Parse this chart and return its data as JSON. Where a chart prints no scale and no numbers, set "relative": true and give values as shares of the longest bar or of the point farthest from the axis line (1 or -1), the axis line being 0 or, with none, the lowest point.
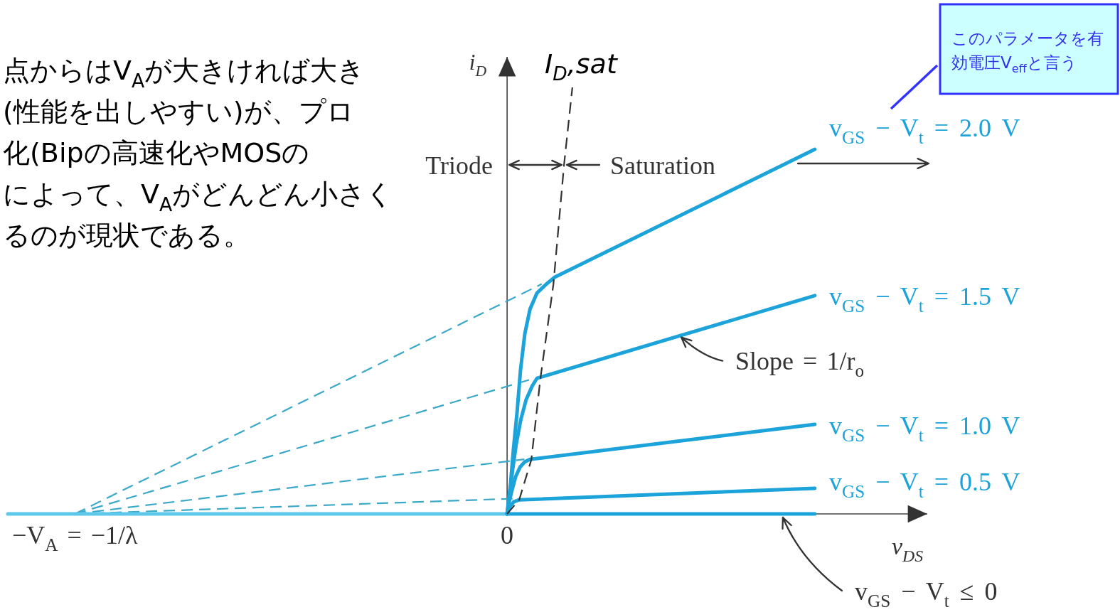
{
  "chart_data": {
    "type": "line",
    "relative": true,
    "tick_labels": "x",
    "xlabel": "v$_{DS}$",
    "ylabel": "i$_{D}$",
    "xlim": [
      -1.155,
      0.972
    ],
    "xticks": [
      {
        "value": -1,
        "label": "−V$_{A}$ = −1/λ"
      },
      {
        "value": 0,
        "label": "0"
      }
    ],
    "series": [
      {
        "color": "#3aa9c9",
        "line_style": "dashed",
        "x": [
          -1,
          0.08
        ],
        "values": [
          0,
          0.539
        ]
      },
      {
        "color": "#3aa9c9",
        "line_style": "dashed",
        "x": [
          -1,
          0.06
        ],
        "values": [
          0,
          0.317
        ]
      },
      {
        "color": "#3aa9c9",
        "line_style": "dashed",
        "x": [
          -1,
          0.04
        ],
        "values": [
          0,
          0.128
        ]
      },
      {
        "color": "#3aa9c9",
        "line_style": "dashed",
        "x": [
          -1,
          0.02
        ],
        "values": [
          0,
          0.036
        ]
      },
      {
        "color": "#5ec8ea",
        "x": [
          -1.155,
          0
        ],
        "values": [
          0,
          0
        ]
      },
      {
        "name": "v$_{GS}$ − V$_{t}$ = 2.0 V",
        "color": "#1ba3da",
        "x": [
          0,
          0.008,
          0.015,
          0.023,
          0.031,
          0.041,
          0.053,
          0.069,
          0.09,
          0.11,
          0.712
        ],
        "values": [
          0,
          0.072,
          0.155,
          0.238,
          0.338,
          0.422,
          0.48,
          0.518,
          0.538,
          0.555,
          0.855
        ]
      },
      {
        "name": "v$_{GS}$ − V$_{t}$ = 1.5 V",
        "color": "#1ba3da",
        "x": [
          0,
          0.007,
          0.013,
          0.021,
          0.031,
          0.044,
          0.058,
          0.069,
          0.712
        ],
        "values": [
          0,
          0.055,
          0.105,
          0.163,
          0.218,
          0.268,
          0.3,
          0.318,
          0.512
        ]
      },
      {
        "name": "v$_{GS}$ − V$_{t}$ = 1.0 V",
        "color": "#1ba3da",
        "x": [
          0,
          0.005,
          0.012,
          0.02,
          0.03,
          0.041,
          0.053,
          0.712
        ],
        "values": [
          0,
          0.03,
          0.058,
          0.088,
          0.11,
          0.122,
          0.128,
          0.21
        ]
      },
      {
        "name": "v$_{GS}$ − V$_{t}$ = 0.5 V",
        "color": "#1ba3da",
        "x": [
          0,
          0.007,
          0.015,
          0.028,
          0.712
        ],
        "values": [
          0,
          0.018,
          0.028,
          0.033,
          0.06
        ]
      },
      {
        "name": "v$_{GS}$ − V$_{t}$ ≤ 0",
        "color": "#1ba3da",
        "x": [
          0,
          0.712
        ],
        "values": [
          0,
          0
        ]
      },
      {
        "name": "I$_{D}$,sat",
        "color": "#333333",
        "line_style": "dashed",
        "x": [
          0,
          0.028,
          0.056,
          0.077,
          0.107,
          0.132,
          0.151
        ],
        "values": [
          0,
          0.033,
          0.127,
          0.317,
          0.538,
          0.822,
          1
        ]
      }
    ],
    "annotations": [
      "Triode",
      "Saturation",
      {
        "text": "Slope = 1/r$_{o}$",
        "x": 0.403,
        "y": 0.419
      },
      "このパラメータを有効電圧V$_{eff}$と言う",
      "点からはV$_{A}$が大きければ大き",
      "(性能を出しやすい)が、プロ",
      "化(Bipの高速化やMOSの",
      "によって、V$_{A}$がどんどん小さく",
      "るのが現状である。"
    ]
  }
}
